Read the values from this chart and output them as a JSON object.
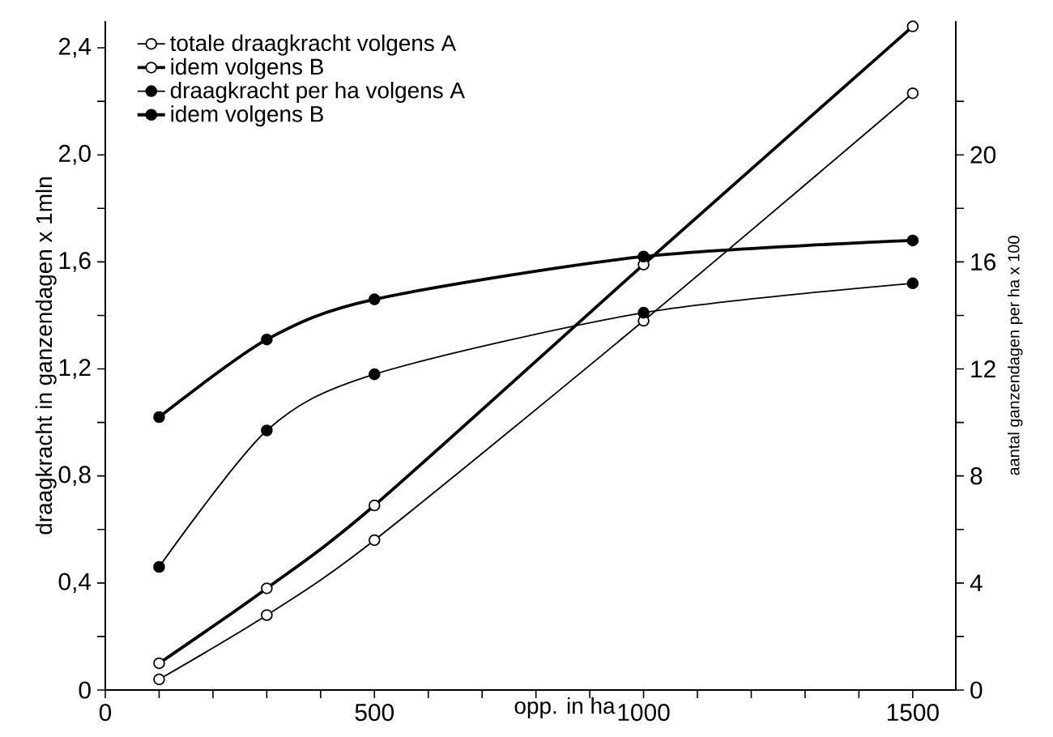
{
  "chart_data": {
    "type": "line",
    "xlabel": "opp. in ha",
    "ylabel": "draagkracht in ganzendagen x 1mln",
    "y2label": "aantal ganzendagen per ha x 100",
    "x": [
      100,
      300,
      500,
      1000,
      1500
    ],
    "xlim": [
      0,
      1580
    ],
    "ylim": [
      0,
      2.5
    ],
    "y2lim": [
      0,
      25
    ],
    "xticks": [
      0,
      {
        "value": 100,
        "label": null
      },
      {
        "value": 200,
        "label": null
      },
      {
        "value": 300,
        "label": null
      },
      {
        "value": 400,
        "label": null
      },
      500,
      {
        "value": 600,
        "label": null
      },
      {
        "value": 700,
        "label": null
      },
      {
        "value": 800,
        "label": null
      },
      {
        "value": 900,
        "label": null
      },
      1000,
      {
        "value": 1100,
        "label": null
      },
      {
        "value": 1200,
        "label": null
      },
      {
        "value": 1300,
        "label": null
      },
      {
        "value": 1400,
        "label": null
      },
      1500
    ],
    "yticks": [
      0,
      {
        "value": 0.2,
        "label": null
      },
      {
        "value": 0.4,
        "label": "0,4"
      },
      {
        "value": 0.6,
        "label": null
      },
      {
        "value": 0.8,
        "label": "0,8"
      },
      {
        "value": 1.0,
        "label": null
      },
      {
        "value": 1.2,
        "label": "1,2"
      },
      {
        "value": 1.4,
        "label": null
      },
      {
        "value": 1.6,
        "label": "1,6"
      },
      {
        "value": 1.8,
        "label": null
      },
      {
        "value": 2.0,
        "label": "2,0"
      },
      {
        "value": 2.2,
        "label": null
      },
      {
        "value": 2.4,
        "label": "2,4"
      }
    ],
    "y2ticks": [
      0,
      {
        "value": 2,
        "label": null
      },
      4,
      {
        "value": 6,
        "label": null
      },
      8,
      {
        "value": 10,
        "label": null
      },
      12,
      {
        "value": 14,
        "label": null
      },
      16,
      {
        "value": 18,
        "label": null
      },
      20,
      {
        "value": 22,
        "label": null
      }
    ],
    "marker": "circle",
    "legend": "top left",
    "grid": false,
    "series": [
      {
        "name": "totale draagkracht volgens A",
        "color": "#000000",
        "values": [
          0.04,
          0.28,
          0.56,
          1.38,
          2.23
        ]
      },
      {
        "name": "idem volgens B",
        "color": "#000000",
        "values": [
          0.1,
          0.38,
          0.69,
          1.59,
          2.48
        ]
      },
      {
        "name": "draagkracht per ha volgens A",
        "color": "#000000",
        "axis": "y2",
        "values": [
          4.6,
          9.7,
          11.8,
          14.1,
          15.2
        ]
      },
      {
        "name": "idem volgens B",
        "color": "#000000",
        "axis": "y2",
        "values": [
          10.2,
          13.1,
          14.6,
          16.2,
          16.8
        ]
      }
    ]
  }
}
